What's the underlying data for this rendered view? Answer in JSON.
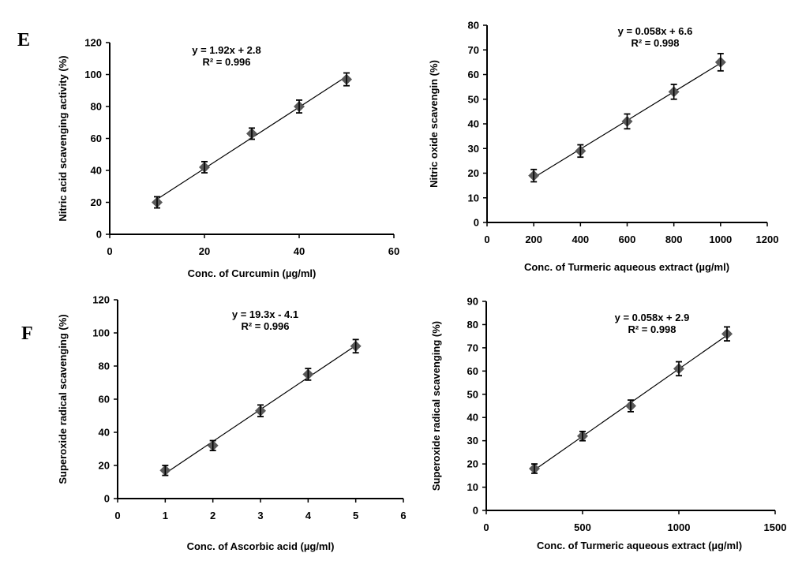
{
  "panel_labels": [
    "E",
    "F"
  ],
  "chart_data": [
    {
      "type": "scatter",
      "panel": "E",
      "title": "",
      "xlabel": "Conc. of Curcumin (µg/ml)",
      "ylabel": "Nitric acid scavenging  activity (%)",
      "xlim": [
        0,
        60
      ],
      "ylim": [
        0,
        120
      ],
      "xticks": [
        0,
        20,
        40,
        60
      ],
      "yticks": [
        0,
        20,
        40,
        60,
        80,
        100,
        120
      ],
      "grid": false,
      "series": [
        {
          "name": "Curcumin",
          "x": [
            10,
            20,
            30,
            40,
            50
          ],
          "y": [
            20,
            42,
            63,
            80,
            97
          ],
          "error": [
            3.5,
            3.5,
            3.5,
            4,
            4
          ]
        }
      ],
      "trendline": {
        "slope": 1.92,
        "intercept": 2.8
      },
      "annotations": [
        "y = 1.92x + 2.8",
        "R² = 0.996"
      ],
      "marker_color": "#595959"
    },
    {
      "type": "scatter",
      "panel": "E",
      "title": "",
      "xlabel": "Conc. of Turmeric aqueous extract (µg/ml)",
      "ylabel": "Nitric oxide scavengin (%)",
      "xlim": [
        0,
        1200
      ],
      "ylim": [
        0,
        80
      ],
      "xticks": [
        0,
        200,
        400,
        600,
        800,
        1000,
        1200
      ],
      "yticks": [
        0,
        10,
        20,
        30,
        40,
        50,
        60,
        70,
        80
      ],
      "grid": false,
      "series": [
        {
          "name": "Turmeric aqueous extract",
          "x": [
            200,
            400,
            600,
            800,
            1000
          ],
          "y": [
            19,
            29,
            41,
            53,
            65
          ],
          "error": [
            2.5,
            2.5,
            3,
            3,
            3.5
          ]
        }
      ],
      "trendline": {
        "slope": 0.058,
        "intercept": 6.6
      },
      "annotations": [
        "y = 0.058x + 6.6",
        "R² = 0.998"
      ],
      "marker_color": "#595959"
    },
    {
      "type": "scatter",
      "panel": "F",
      "title": "",
      "xlabel": "Conc. of Ascorbic acid (µg/ml)",
      "ylabel": "Superoxide radical scavenging  (%)",
      "xlim": [
        0,
        6
      ],
      "ylim": [
        0,
        120
      ],
      "xticks": [
        0,
        1,
        2,
        3,
        4,
        5,
        6
      ],
      "yticks": [
        0,
        20,
        40,
        60,
        80,
        100,
        120
      ],
      "grid": false,
      "series": [
        {
          "name": "Ascorbic acid",
          "x": [
            1,
            2,
            3,
            4,
            5
          ],
          "y": [
            17,
            32,
            53,
            75,
            92
          ],
          "error": [
            3,
            3,
            3.5,
            3.5,
            4
          ]
        }
      ],
      "trendline": {
        "slope": 19.3,
        "intercept": -4.1
      },
      "annotations": [
        "y = 19.3x  - 4.1",
        "R² = 0.996"
      ],
      "marker_color": "#595959"
    },
    {
      "type": "scatter",
      "panel": "F",
      "title": "",
      "xlabel": "Conc. of Turmeric aqueous extract (µg/ml)",
      "ylabel": "Superoxide radical scavenging  (%)",
      "xlim": [
        0,
        1500
      ],
      "ylim": [
        0,
        90
      ],
      "xticks": [
        0,
        500,
        1000,
        1500
      ],
      "yticks": [
        0,
        10,
        20,
        30,
        40,
        50,
        60,
        70,
        80,
        90
      ],
      "grid": false,
      "series": [
        {
          "name": "Turmeric aqueous extract",
          "x": [
            250,
            500,
            750,
            1000,
            1250
          ],
          "y": [
            18,
            32,
            45,
            61,
            76
          ],
          "error": [
            2,
            2,
            2.5,
            3,
            3
          ]
        }
      ],
      "trendline": {
        "slope": 0.058,
        "intercept": 2.9
      },
      "annotations": [
        "y = 0.058x + 2.9",
        "R² = 0.998"
      ],
      "marker_color": "#595959"
    }
  ]
}
